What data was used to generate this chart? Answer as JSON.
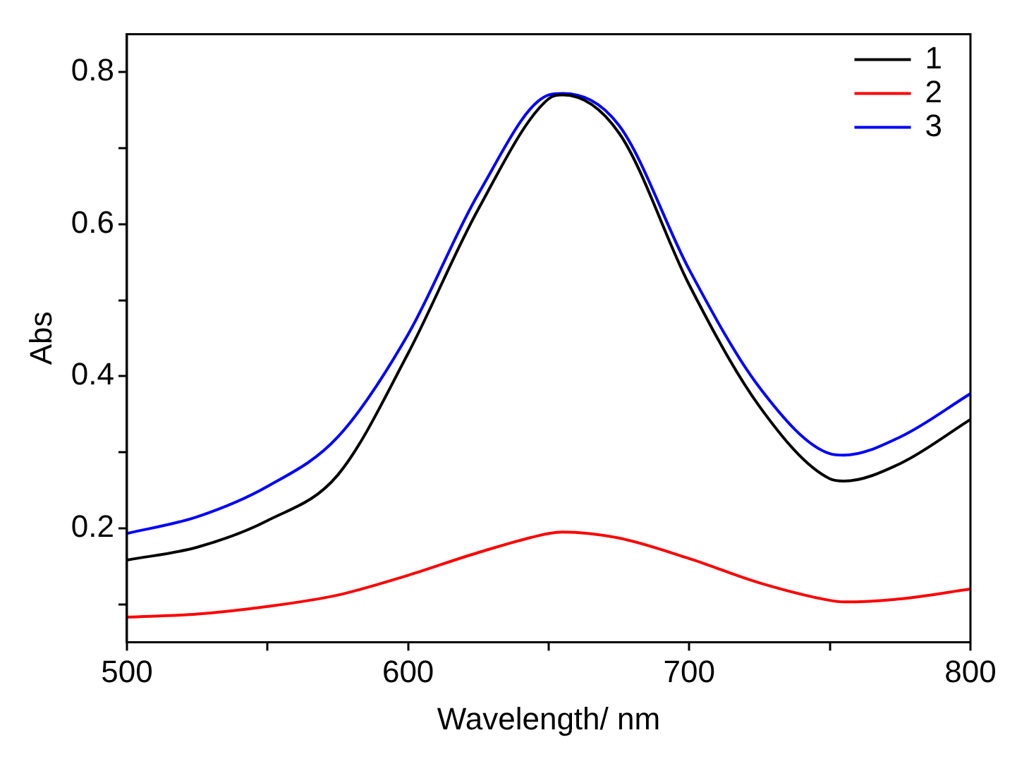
{
  "chart_data": {
    "type": "line",
    "xlabel": "Wavelength/ nm",
    "ylabel": "Abs",
    "xlim": [
      500,
      800
    ],
    "ylim": [
      0.05,
      0.85
    ],
    "xticks": [
      500,
      {
        "value": 550,
        "label": null
      },
      600,
      {
        "value": 650,
        "label": null
      },
      700,
      {
        "value": 750,
        "label": null
      },
      800
    ],
    "yticks": [
      {
        "value": 0.1,
        "label": null
      },
      0.2,
      {
        "value": 0.3,
        "label": null
      },
      0.4,
      {
        "value": 0.5,
        "label": null
      },
      0.6,
      {
        "value": 0.7,
        "label": null
      },
      0.8
    ],
    "x": [
      500,
      525,
      550,
      575,
      600,
      625,
      650,
      655,
      675,
      700,
      725,
      750,
      755,
      775,
      800
    ],
    "series": [
      {
        "name": "1",
        "color": "#000000",
        "values": [
          0.158,
          0.175,
          0.21,
          0.27,
          0.43,
          0.62,
          0.765,
          0.77,
          0.72,
          0.52,
          0.36,
          0.265,
          0.262,
          0.285,
          0.343
        ]
      },
      {
        "name": "2",
        "color": "#ff0000",
        "values": [
          0.083,
          0.087,
          0.097,
          0.112,
          0.138,
          0.168,
          0.193,
          0.195,
          0.187,
          0.16,
          0.128,
          0.105,
          0.103,
          0.107,
          0.12
        ]
      },
      {
        "name": "3",
        "color": "#0000ff",
        "values": [
          0.193,
          0.215,
          0.255,
          0.32,
          0.455,
          0.64,
          0.77,
          0.772,
          0.73,
          0.54,
          0.385,
          0.298,
          0.296,
          0.32,
          0.377
        ]
      }
    ],
    "legend": "top right",
    "grid": false,
    "marker": "none",
    "line_style": "solid"
  }
}
